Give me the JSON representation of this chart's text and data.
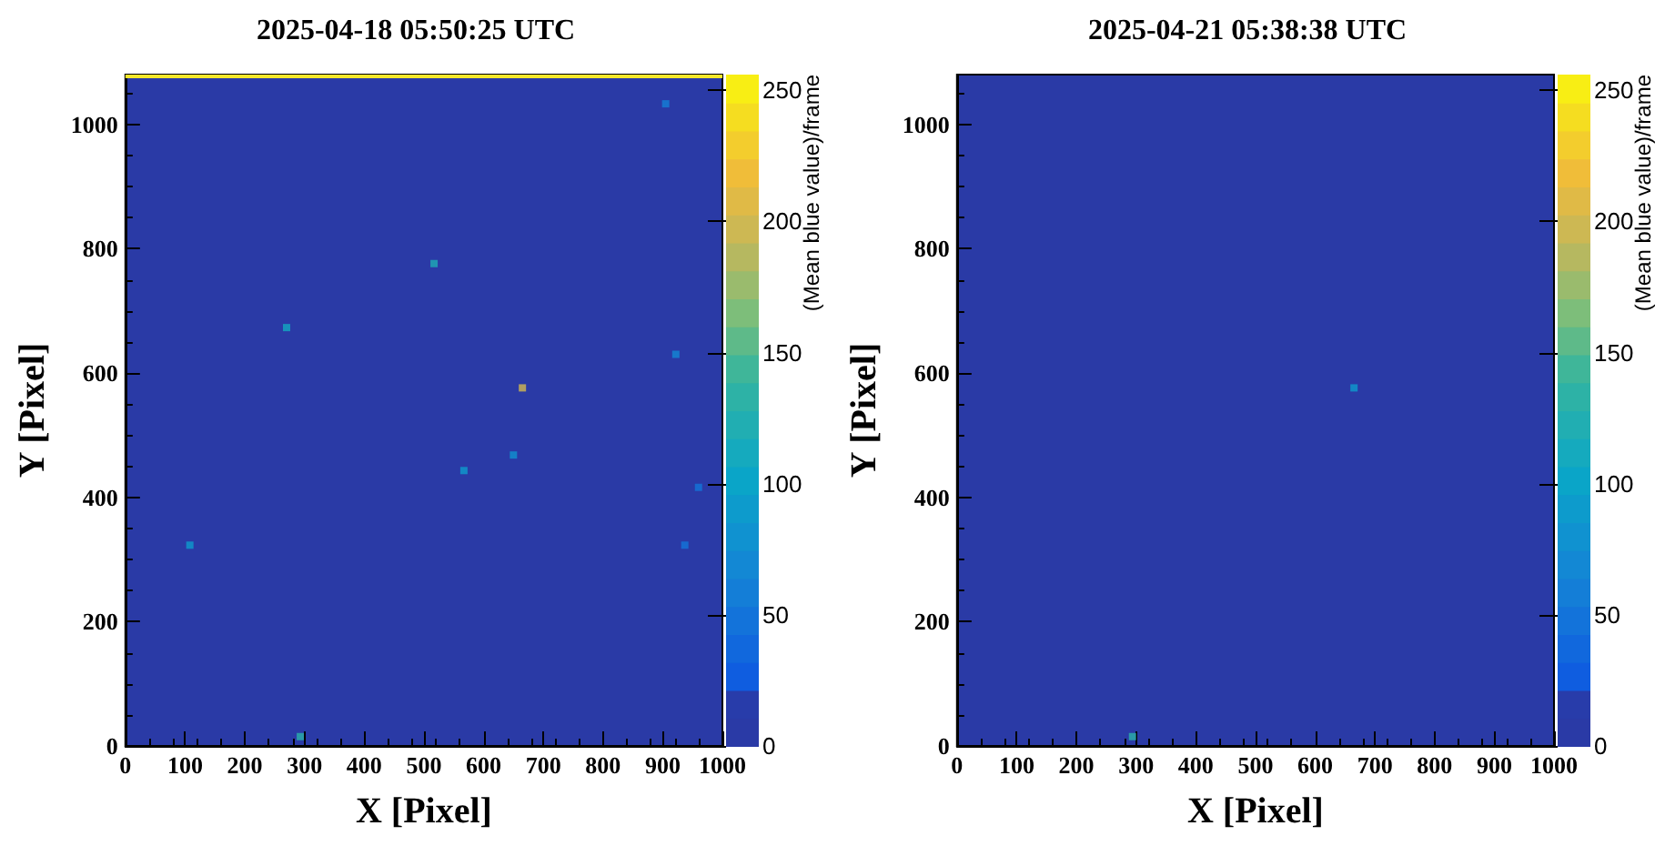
{
  "chart_data": [
    {
      "type": "scatter",
      "title": "2025-04-18 05:50:25 UTC",
      "xlabel": "X [Pixel]",
      "ylabel": "Y [Pixel]",
      "clabel": "(Mean blue value)/frame",
      "x": [
        108,
        270,
        517,
        665,
        567,
        650,
        293,
        922,
        905,
        937,
        960
      ],
      "values": [
        323,
        673,
        776,
        576,
        443,
        468,
        15,
        630,
        1033,
        323,
        416
      ],
      "cvalues": [
        90,
        110,
        120,
        200,
        90,
        80,
        130,
        70,
        60,
        50,
        50
      ],
      "xlim": [
        0,
        1000
      ],
      "ylim": [
        0,
        1080
      ],
      "xticks": [
        0,
        100,
        200,
        300,
        400,
        500,
        600,
        700,
        800,
        900,
        1000
      ],
      "yticks": [
        0,
        200,
        400,
        600,
        800,
        1000
      ],
      "clim": [
        0,
        256
      ],
      "cticks": [
        0,
        50,
        100,
        150,
        200,
        250
      ],
      "marker": "square",
      "grid": false,
      "ref_lines": [
        {
          "axis": "y",
          "value": 1079,
          "label": null,
          "color": "#f5e72a"
        }
      ]
    },
    {
      "type": "scatter",
      "title": "2025-04-21 05:38:38 UTC",
      "xlabel": "X [Pixel]",
      "ylabel": "Y [Pixel]",
      "clabel": "(Mean blue value)/frame",
      "x": [
        665,
        294
      ],
      "values": [
        576,
        15
      ],
      "cvalues": [
        90,
        130
      ],
      "xlim": [
        0,
        1000
      ],
      "ylim": [
        0,
        1080
      ],
      "xticks": [
        0,
        100,
        200,
        300,
        400,
        500,
        600,
        700,
        800,
        900,
        1000
      ],
      "yticks": [
        0,
        200,
        400,
        600,
        800,
        1000
      ],
      "clim": [
        0,
        256
      ],
      "cticks": [
        0,
        50,
        100,
        150,
        200,
        250
      ],
      "marker": "square",
      "grid": false
    }
  ]
}
